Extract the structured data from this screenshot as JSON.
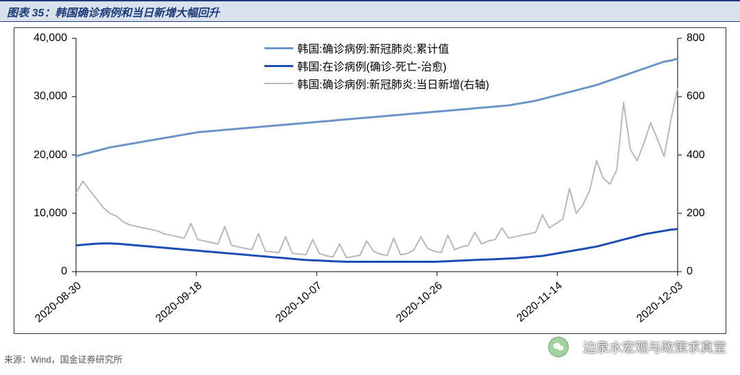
{
  "header": {
    "title": "图表 35：韩国确诊病例和当日新增大幅回升"
  },
  "source": {
    "text": "来源：Wind，国金证券研究所"
  },
  "watermark": {
    "text": "边泉水宏观与政策求真堂"
  },
  "chart": {
    "type": "line",
    "background_color": "#ffffff",
    "border_color": "#333333",
    "grid": false,
    "axis_font_size": 16,
    "x": {
      "ticks": [
        "2020-08-30",
        "2020-09-18",
        "2020-10-07",
        "2020-10-26",
        "2020-11-14",
        "2020-12-03"
      ],
      "rotation": -40
    },
    "y_left": {
      "min": 0,
      "max": 40000,
      "step": 10000,
      "ticks": [
        "0",
        "10,000",
        "20,000",
        "30,000",
        "40,000"
      ]
    },
    "y_right": {
      "min": 0,
      "max": 800,
      "step": 200,
      "ticks": [
        "0",
        "200",
        "400",
        "600",
        "800"
      ]
    },
    "legend": {
      "items": [
        {
          "label": "韩国:确诊病例:新冠肺炎:累计值",
          "color": "#6b95c9",
          "width": 3
        },
        {
          "label": "韩国:在诊病例(确诊-死亡-治愈)",
          "color": "#1a4db3",
          "width": 3
        },
        {
          "label": "韩国:确诊病例:新冠肺炎:当日新增(右轴)",
          "color": "#b8b8b8",
          "width": 2
        }
      ]
    },
    "series": [
      {
        "name": "cumulative",
        "axis": "left",
        "color": "#6b95c9",
        "width": 3,
        "data": [
          19800,
          20100,
          20400,
          20700,
          21000,
          21300,
          21500,
          21700,
          21900,
          22100,
          22300,
          22500,
          22700,
          22900,
          23100,
          23300,
          23500,
          23700,
          23900,
          24000,
          24100,
          24200,
          24300,
          24400,
          24500,
          24600,
          24700,
          24800,
          24900,
          25000,
          25100,
          25200,
          25300,
          25400,
          25500,
          25600,
          25700,
          25800,
          25900,
          26000,
          26100,
          26200,
          26300,
          26400,
          26500,
          26600,
          26700,
          26800,
          26900,
          27000,
          27100,
          27200,
          27300,
          27400,
          27500,
          27600,
          27700,
          27800,
          27900,
          28000,
          28100,
          28200,
          28300,
          28400,
          28500,
          28700,
          28900,
          29100,
          29300,
          29600,
          29900,
          30200,
          30500,
          30800,
          31100,
          31400,
          31700,
          32000,
          32400,
          32800,
          33200,
          33600,
          34000,
          34400,
          34800,
          35200,
          35600,
          36000,
          36200,
          36500
        ]
      },
      {
        "name": "active",
        "axis": "left",
        "color": "#1a4db3",
        "width": 3,
        "data": [
          4500,
          4600,
          4700,
          4800,
          4850,
          4850,
          4800,
          4700,
          4600,
          4500,
          4400,
          4300,
          4200,
          4100,
          4000,
          3900,
          3800,
          3700,
          3600,
          3500,
          3400,
          3300,
          3200,
          3100,
          3000,
          2900,
          2800,
          2700,
          2600,
          2500,
          2400,
          2300,
          2200,
          2100,
          2000,
          1950,
          1900,
          1850,
          1800,
          1750,
          1700,
          1700,
          1700,
          1700,
          1700,
          1700,
          1700,
          1700,
          1700,
          1700,
          1700,
          1700,
          1700,
          1700,
          1750,
          1800,
          1850,
          1900,
          1950,
          2000,
          2050,
          2100,
          2150,
          2200,
          2250,
          2300,
          2400,
          2500,
          2600,
          2700,
          2900,
          3100,
          3300,
          3500,
          3700,
          3900,
          4100,
          4300,
          4600,
          4900,
          5200,
          5500,
          5800,
          6100,
          6400,
          6600,
          6800,
          7000,
          7200,
          7300
        ]
      },
      {
        "name": "daily_new",
        "axis": "right",
        "color": "#b8b8b8",
        "width": 2,
        "data": [
          270,
          310,
          280,
          250,
          220,
          200,
          190,
          170,
          160,
          155,
          150,
          145,
          140,
          130,
          125,
          120,
          115,
          165,
          110,
          105,
          100,
          95,
          155,
          90,
          85,
          80,
          75,
          130,
          70,
          68,
          65,
          120,
          63,
          60,
          58,
          110,
          62,
          55,
          50,
          95,
          48,
          52,
          56,
          105,
          70,
          60,
          55,
          115,
          58,
          62,
          75,
          120,
          80,
          70,
          65,
          125,
          75,
          85,
          90,
          135,
          95,
          105,
          110,
          150,
          115,
          120,
          125,
          130,
          135,
          195,
          150,
          165,
          180,
          285,
          200,
          230,
          280,
          380,
          320,
          300,
          350,
          580,
          420,
          380,
          440,
          510,
          455,
          395,
          520,
          630
        ]
      }
    ]
  }
}
